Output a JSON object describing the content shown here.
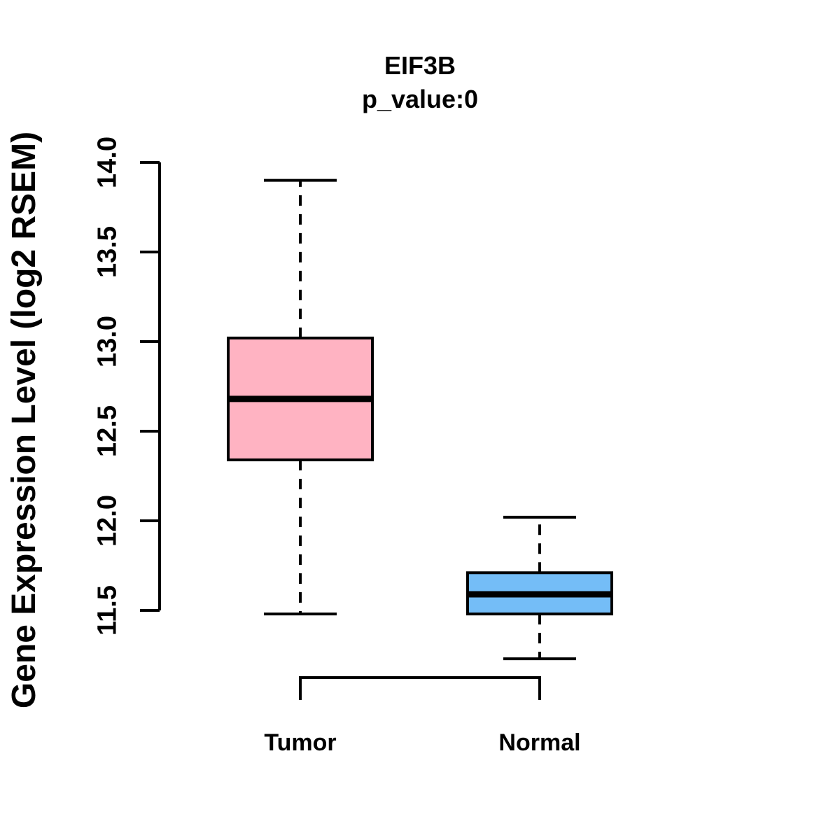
{
  "chart_data": {
    "type": "boxplot",
    "title": "EIF3B",
    "subtitle": "p_value:0",
    "ylabel": "Gene Expression Level (log2 RSEM)",
    "xlabel": "",
    "ylim": [
      11.5,
      14.0
    ],
    "yticks": [
      11.5,
      12.0,
      12.5,
      13.0,
      13.5,
      14.0
    ],
    "ytick_labels": [
      "11.5",
      "12.0",
      "12.5",
      "13.0",
      "13.5",
      "14.0"
    ],
    "categories": [
      "Tumor",
      "Normal"
    ],
    "grid": false,
    "legend": "none",
    "stroke_color": "#000000",
    "series": [
      {
        "name": "Tumor",
        "fill_color": "#FFB3C2",
        "stats": {
          "lower_whisker": 11.48,
          "q1": 12.34,
          "median": 12.68,
          "q3": 13.02,
          "upper_whisker": 13.9
        }
      },
      {
        "name": "Normal",
        "fill_color": "#74BDF7",
        "stats": {
          "lower_whisker": 11.23,
          "q1": 11.48,
          "median": 11.59,
          "q3": 11.71,
          "upper_whisker": 12.02
        }
      }
    ]
  }
}
